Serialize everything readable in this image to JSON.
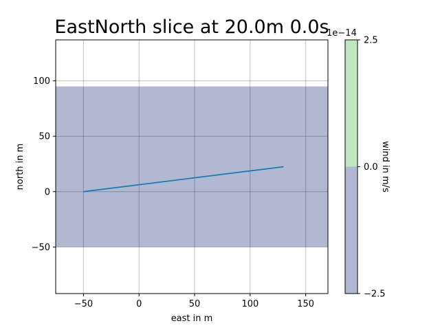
{
  "chart_data": {
    "type": "heatmap",
    "title": "EastNorth slice at 20.0m 0.0s",
    "xlabel": "east in m",
    "ylabel": "north in m",
    "xlim": [
      -75,
      170
    ],
    "ylim": [
      -92,
      137
    ],
    "xticks": [
      -50,
      0,
      50,
      100,
      150
    ],
    "xtick_labels": [
      "−50",
      "0",
      "50",
      "100",
      "150"
    ],
    "yticks": [
      -50,
      0,
      50,
      100
    ],
    "ytick_labels": [
      "−50",
      "0",
      "50",
      "100"
    ],
    "grid": true,
    "field": {
      "x_range": [
        -75,
        170
      ],
      "y_range": [
        -50,
        95
      ],
      "value": -2.5e-14,
      "color": "#b0b8d2"
    },
    "series": [
      {
        "x": [
          -50,
          130
        ],
        "y": [
          0,
          22.5
        ],
        "color": "#1f77b4"
      }
    ],
    "colorbar": {
      "label": "wind in m/s",
      "multiplier": "1e−14",
      "range": [
        -2.5,
        2.5
      ],
      "ticks": [
        2.5,
        0.0,
        -2.5
      ],
      "tick_labels": [
        "2.5",
        "0.0",
        "−2.5"
      ],
      "segments": [
        {
          "from": 0.0,
          "to": 2.5,
          "color": "#c0e8c0"
        },
        {
          "from": -2.5,
          "to": 0.0,
          "color": "#b0b8d2"
        }
      ]
    }
  }
}
